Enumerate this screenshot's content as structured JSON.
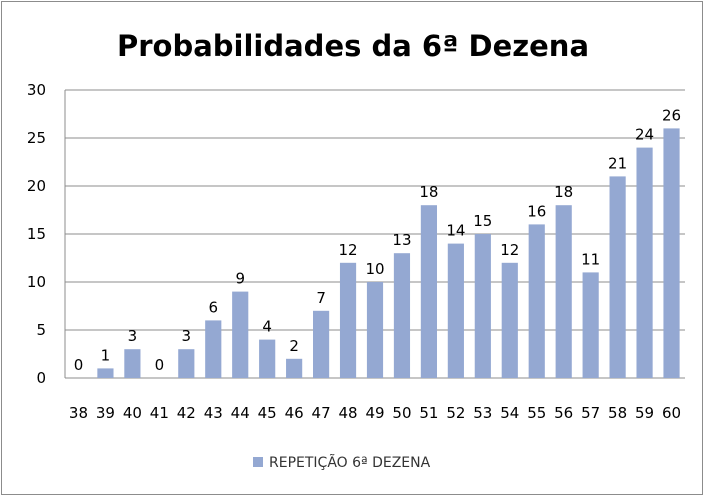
{
  "chart_data": {
    "type": "bar",
    "title": "Probabilidades da 6ª Dezena",
    "categories": [
      "38",
      "39",
      "40",
      "41",
      "42",
      "43",
      "44",
      "45",
      "46",
      "47",
      "48",
      "49",
      "50",
      "51",
      "52",
      "53",
      "54",
      "55",
      "56",
      "57",
      "58",
      "59",
      "60"
    ],
    "series": [
      {
        "name": "REPETIÇÃO 6ª DEZENA",
        "values": [
          0,
          1,
          3,
          0,
          3,
          6,
          9,
          4,
          2,
          7,
          12,
          10,
          13,
          18,
          14,
          15,
          12,
          16,
          18,
          11,
          21,
          24,
          26
        ]
      }
    ],
    "ylim": [
      0,
      30
    ],
    "yticks": [
      0,
      5,
      10,
      15,
      20,
      25,
      30
    ],
    "grid": true,
    "legend_position": "bottom",
    "bar_color": "#94a8d2",
    "grid_color": "#8c8c8c"
  }
}
